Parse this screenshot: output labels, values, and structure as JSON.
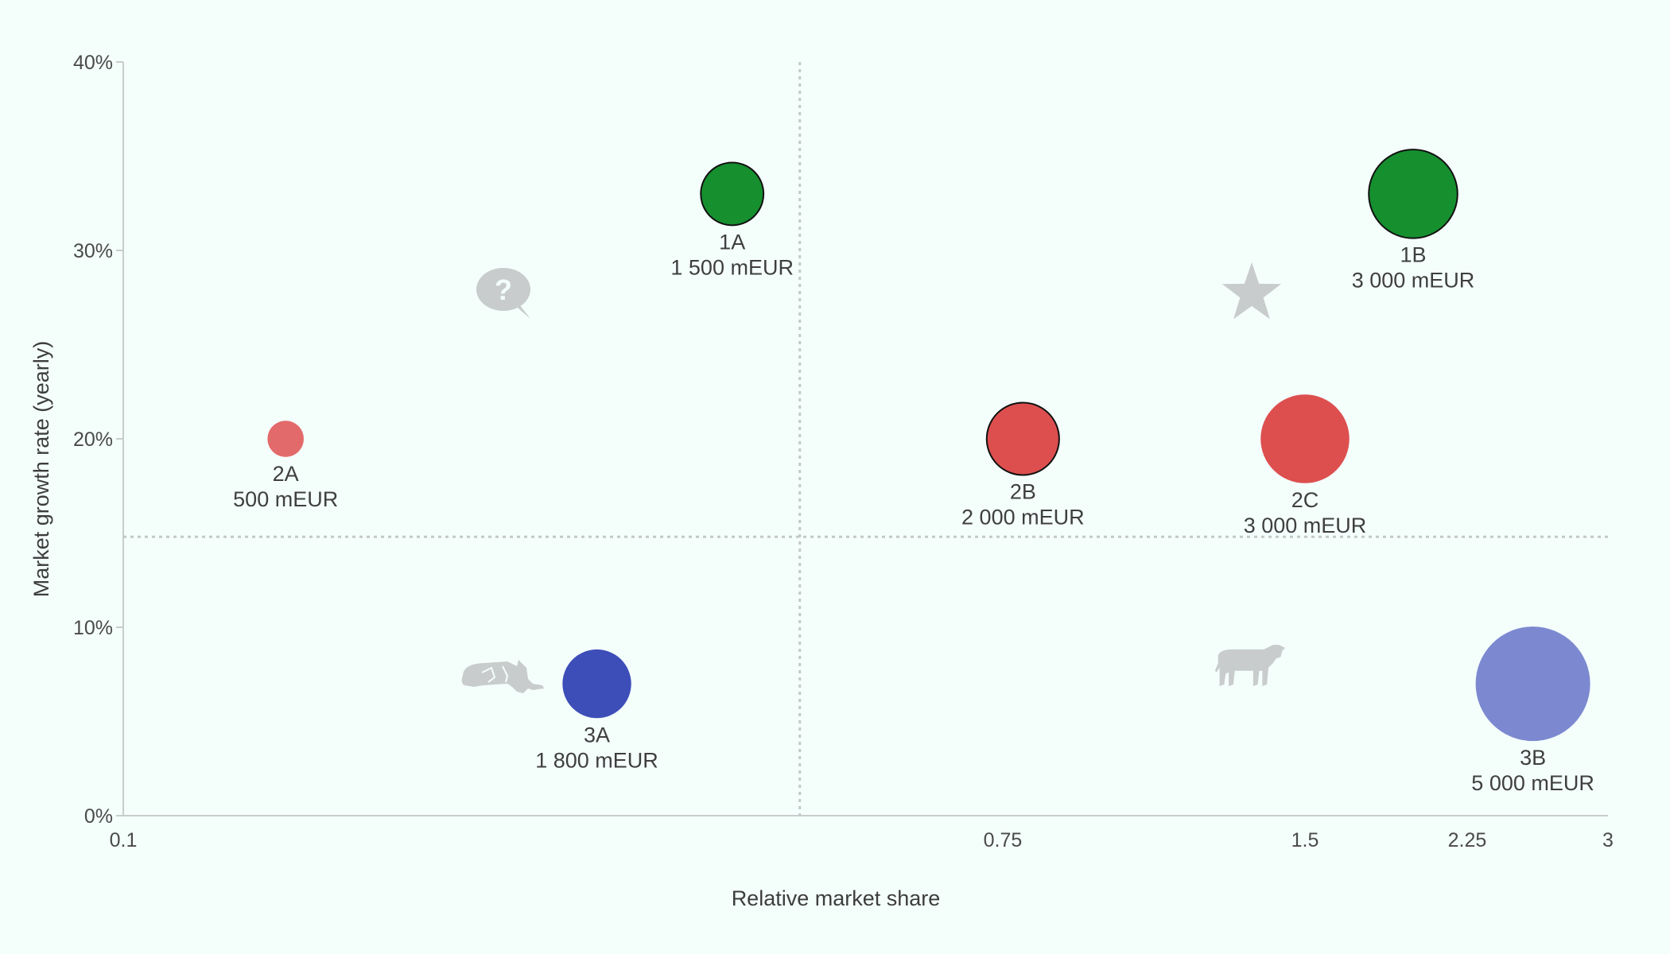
{
  "chart_data": {
    "type": "scatter",
    "subtype": "bubble",
    "title": "",
    "xlabel": "Relative market share",
    "ylabel": "Market growth rate (yearly)",
    "x_ticks": [
      "0.1",
      "0.75",
      "1.5",
      "2.25",
      "3"
    ],
    "y_ticks": [
      "0%",
      "10%",
      "20%",
      "30%",
      "40%"
    ],
    "ylim": [
      0,
      40
    ],
    "x_divider": 0.6,
    "y_divider": 14.8,
    "grid": false,
    "legend": "none",
    "quadrant_icons": [
      {
        "name": "question-icon",
        "quadrant": "top-left"
      },
      {
        "name": "star-icon",
        "quadrant": "top-right"
      },
      {
        "name": "dog-icon",
        "quadrant": "bottom-left"
      },
      {
        "name": "cow-icon",
        "quadrant": "bottom-right"
      }
    ],
    "points": [
      {
        "id": "1A",
        "x": 0.55,
        "y": 33,
        "value": 1500,
        "value_label": "1 500 mEUR",
        "color": "#168f2f",
        "outline": true
      },
      {
        "id": "1B",
        "x": 2.0,
        "y": 33,
        "value": 3000,
        "value_label": "3 000 mEUR",
        "color": "#168f2f",
        "outline": true
      },
      {
        "id": "2A",
        "x": 0.22,
        "y": 20,
        "value": 500,
        "value_label": "500 mEUR",
        "color": "#e36a6a",
        "outline": false
      },
      {
        "id": "2B",
        "x": 0.8,
        "y": 20,
        "value": 2000,
        "value_label": "2 000 mEUR",
        "color": "#dd4f4f",
        "outline": true
      },
      {
        "id": "2C",
        "x": 1.5,
        "y": 20,
        "value": 3000,
        "value_label": "3 000 mEUR",
        "color": "#dd4f4f",
        "outline": false
      },
      {
        "id": "3A",
        "x": 0.45,
        "y": 7,
        "value": 1800,
        "value_label": "1 800 mEUR",
        "color": "#3d4eb8",
        "outline": false
      },
      {
        "id": "3B",
        "x": 2.6,
        "y": 7,
        "value": 5000,
        "value_label": "5 000 mEUR",
        "color": "#7c89d0",
        "outline": false
      }
    ]
  }
}
